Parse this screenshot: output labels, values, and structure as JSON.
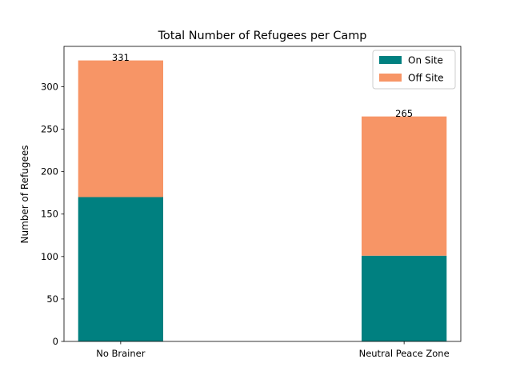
{
  "chart_data": {
    "type": "bar",
    "stacked": true,
    "title": "Total Number of Refugees per Camp",
    "xlabel": "",
    "ylabel": "Number of Refugees",
    "categories": [
      "No Brainer",
      "Neutral Peace Zone"
    ],
    "series": [
      {
        "name": "On Site",
        "values": [
          170,
          101
        ],
        "color": "#008080"
      },
      {
        "name": "Off Site",
        "values": [
          161,
          164
        ],
        "color": "#f79566"
      }
    ],
    "totals": [
      331,
      265
    ],
    "ylim": [
      0,
      347.55
    ],
    "yticks": [
      0,
      50,
      100,
      150,
      200,
      250,
      300
    ],
    "grid": false,
    "legend_position": "top-right"
  }
}
